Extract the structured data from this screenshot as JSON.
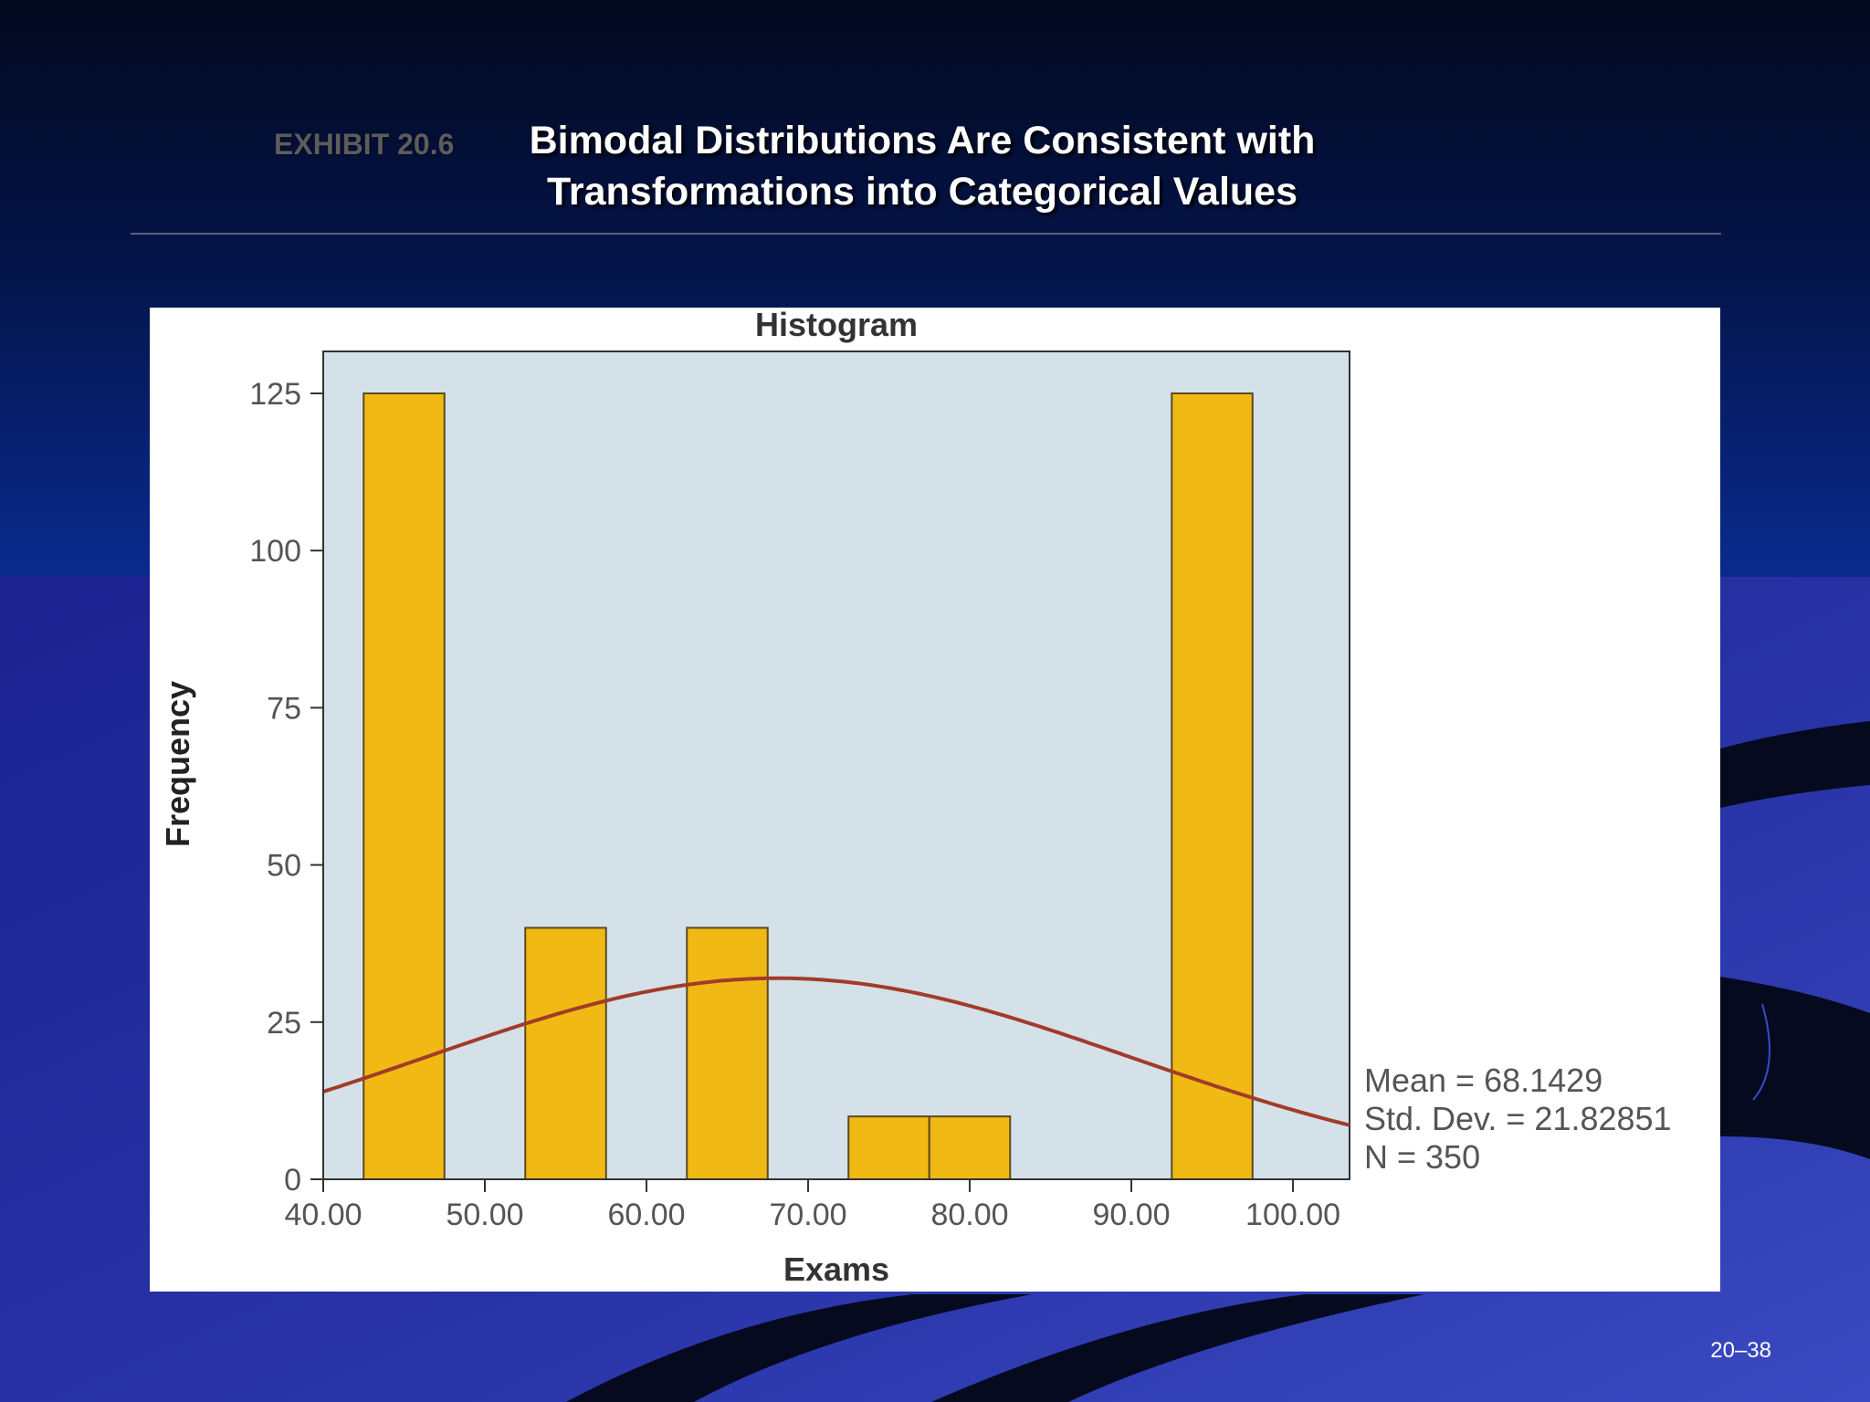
{
  "slide": {
    "exhibit_label": "EXHIBIT 20.6",
    "title_lines": [
      "Bimodal Distributions Are Consistent with",
      "Transformations into Categorical Values"
    ],
    "page_number": "20–38"
  },
  "colors": {
    "bar_fill": "#f0b914",
    "bar_stroke": "#5a4a20",
    "plot_background": "#d4e1e9",
    "curve": "#a23b2a",
    "panel_background": "#ffffff"
  },
  "chart_data": {
    "type": "bar",
    "subtype": "histogram",
    "title": "Histogram",
    "xlabel": "Exams",
    "ylabel": "Frequency",
    "xlim": [
      40,
      103.5
    ],
    "ylim": [
      0,
      125
    ],
    "x_ticks": [
      40,
      50,
      60,
      70,
      80,
      90,
      100
    ],
    "x_tick_labels": [
      "40.00",
      "50.00",
      "60.00",
      "70.00",
      "80.00",
      "90.00",
      "100.00"
    ],
    "y_ticks": [
      0,
      25,
      50,
      75,
      100,
      125
    ],
    "y_tick_labels": [
      "0",
      "25",
      "50",
      "75",
      "100",
      "125"
    ],
    "bins": [
      {
        "start": 42.5,
        "end": 47.5,
        "count": 125
      },
      {
        "start": 52.5,
        "end": 57.5,
        "count": 40
      },
      {
        "start": 62.5,
        "end": 67.5,
        "count": 40
      },
      {
        "start": 72.5,
        "end": 77.5,
        "count": 10
      },
      {
        "start": 77.5,
        "end": 82.5,
        "count": 10
      },
      {
        "start": 92.5,
        "end": 97.5,
        "count": 125
      }
    ],
    "normal_curve": {
      "mean": 68.1429,
      "std_dev": 21.82851,
      "n": 350,
      "bin_width": 5
    },
    "stats_lines": [
      "Mean = 68.1429",
      "Std. Dev. = 21.82851",
      "N = 350"
    ],
    "grid": false,
    "legend": "none"
  }
}
